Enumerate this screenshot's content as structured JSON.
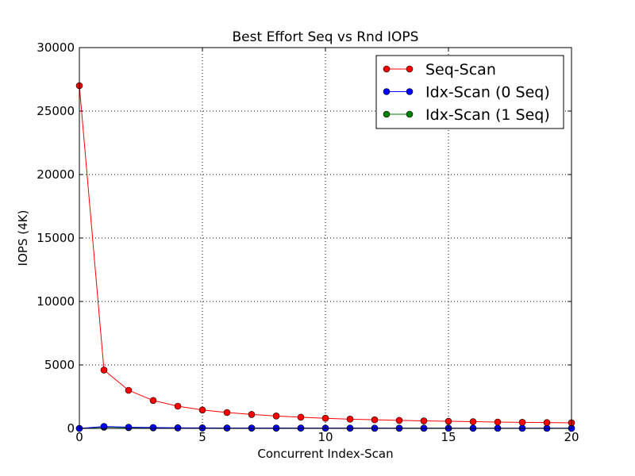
{
  "chart_data": {
    "type": "line",
    "title": "Best Effort Seq vs Rnd IOPS",
    "xlabel": "Concurrent Index-Scan",
    "ylabel": "IOPS (4K)",
    "xlim": [
      0,
      20
    ],
    "ylim": [
      0,
      30000
    ],
    "x_ticks": [
      0,
      5,
      10,
      15,
      20
    ],
    "y_ticks": [
      0,
      5000,
      10000,
      15000,
      20000,
      25000,
      30000
    ],
    "grid": true,
    "legend_position": "top-right",
    "x": [
      0,
      1,
      2,
      3,
      4,
      5,
      6,
      7,
      8,
      9,
      10,
      11,
      12,
      13,
      14,
      15,
      16,
      17,
      18,
      19,
      20
    ],
    "series": [
      {
        "name": "Seq-Scan",
        "color": "#ff0000",
        "values": [
          27000,
          4600,
          3000,
          2200,
          1750,
          1450,
          1250,
          1100,
          980,
          880,
          800,
          730,
          680,
          630,
          590,
          560,
          530,
          500,
          480,
          460,
          440
        ]
      },
      {
        "name": "Idx-Scan (0 Seq)",
        "color": "#0000ff",
        "values": [
          0,
          150,
          90,
          70,
          50,
          40,
          35,
          30,
          28,
          25,
          23,
          21,
          20,
          19,
          18,
          17,
          16,
          15,
          15,
          14,
          14
        ]
      },
      {
        "name": "Idx-Scan (1 Seq)",
        "color": "#008000",
        "values": [
          0,
          100,
          60,
          45,
          35,
          28,
          24,
          21,
          19,
          17,
          16,
          15,
          14,
          13,
          12,
          12,
          11,
          11,
          10,
          10,
          10
        ]
      }
    ]
  }
}
